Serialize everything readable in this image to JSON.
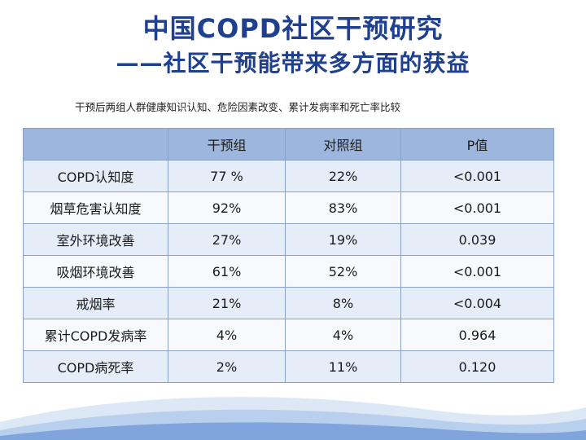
{
  "slide": {
    "title_line1": "中国COPD社区干预研究",
    "title_line2": "——社区干预能带来多方面的获益",
    "subtitle": "干预后两组人群健康知识认知、危险因素改变、累计发病率和死亡率比较"
  },
  "table": {
    "headers": [
      "",
      "干预组",
      "对照组",
      "P值"
    ],
    "rows": [
      [
        "COPD认知度",
        "77 %",
        "22%",
        "<0.001"
      ],
      [
        "烟草危害认知度",
        "92%",
        "83%",
        "<0.001"
      ],
      [
        "室外环境改善",
        "27%",
        "19%",
        "0.039"
      ],
      [
        "吸烟环境改善",
        "61%",
        "52%",
        "<0.001"
      ],
      [
        "戒烟率",
        "21%",
        "8%",
        "<0.004"
      ],
      [
        "累计COPD发病率",
        "4%",
        "4%",
        "0.964"
      ],
      [
        "COPD病死率",
        "2%",
        "11%",
        "0.120"
      ]
    ]
  },
  "colors": {
    "title": "#1f3f8f",
    "header_bg": "#9db6de",
    "row_band": "#e5edf8",
    "wave": "#5f8fd0"
  }
}
